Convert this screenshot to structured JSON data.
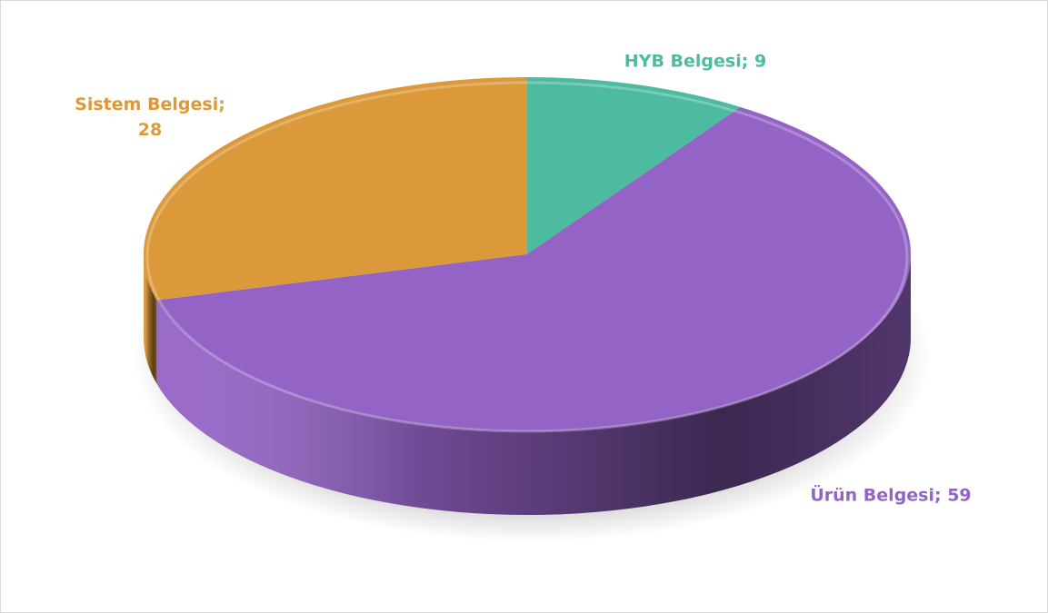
{
  "chart_data": {
    "type": "pie",
    "values": [
      9,
      59,
      28
    ],
    "value_labels": [
      "HYB Belgesi; 9",
      "Ürün Belgesi; 59",
      "Sistem Belgesi; 28"
    ],
    "colors": [
      "#4dbba0",
      "#9463c6",
      "#db993a"
    ]
  }
}
